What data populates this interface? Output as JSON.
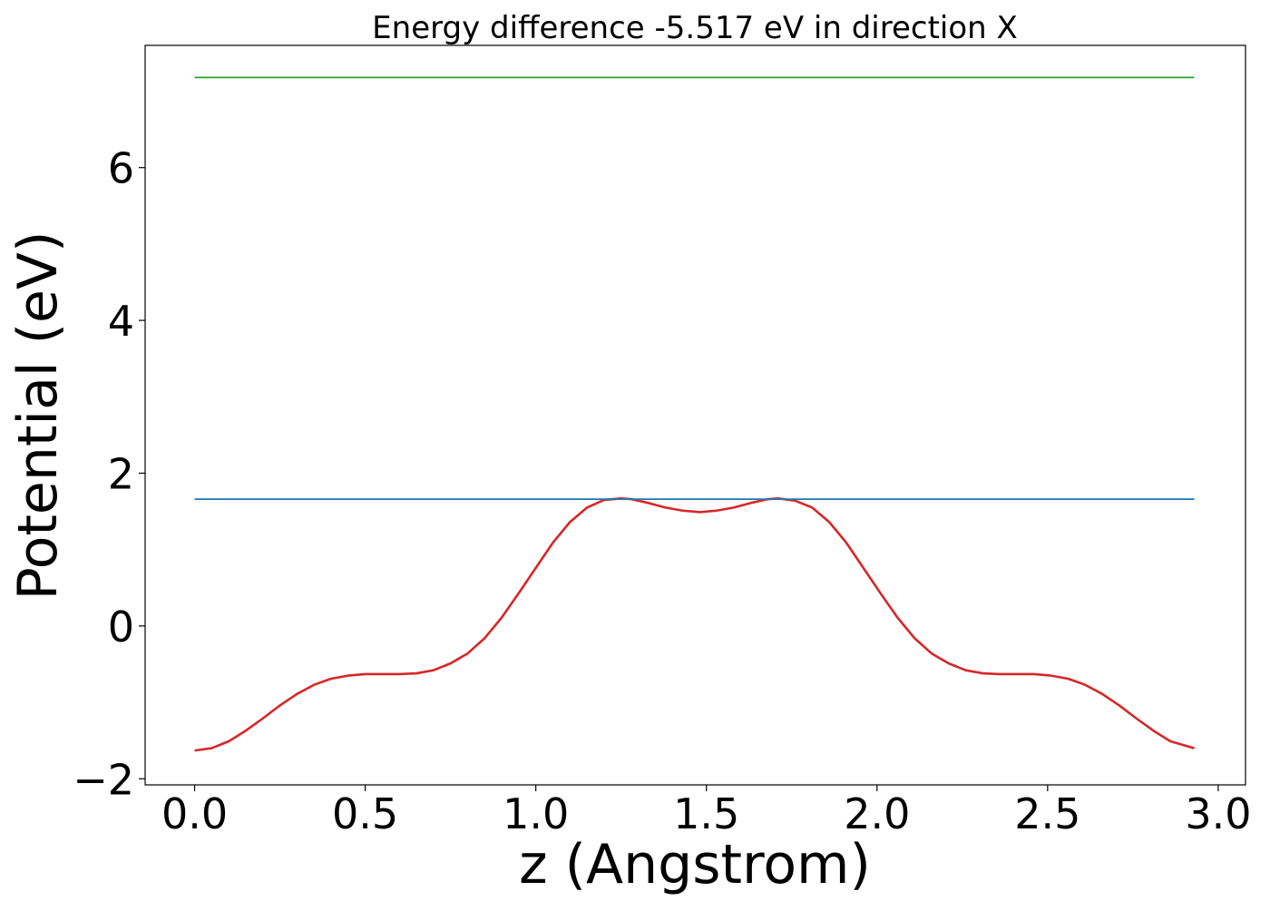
{
  "chart_data": {
    "type": "line",
    "title": "Energy difference -5.517 eV in direction X",
    "xlabel": "z (Angstrom)",
    "ylabel": "Potential (eV)",
    "xlim": [
      -0.145,
      3.08
    ],
    "ylim": [
      -2.08,
      7.6
    ],
    "xticks": [
      0.0,
      0.5,
      1.0,
      1.5,
      2.0,
      2.5,
      3.0
    ],
    "xtick_labels": [
      "0.0",
      "0.5",
      "1.0",
      "1.5",
      "2.0",
      "2.5",
      "3.0"
    ],
    "yticks": [
      -2,
      0,
      2,
      4,
      6
    ],
    "ytick_labels": [
      "−2",
      "0",
      "2",
      "4",
      "6"
    ],
    "grid": false,
    "series": [
      {
        "color": "#d62728",
        "x": [
          0.0,
          0.05,
          0.1,
          0.15,
          0.2,
          0.25,
          0.3,
          0.35,
          0.4,
          0.45,
          0.5,
          0.55,
          0.6,
          0.65,
          0.7,
          0.75,
          0.8,
          0.85,
          0.9,
          0.95,
          1.0,
          1.05,
          1.1,
          1.15,
          1.2,
          1.25,
          1.28,
          1.33,
          1.38,
          1.43,
          1.48,
          1.53,
          1.58,
          1.63,
          1.68,
          1.71,
          1.76,
          1.81,
          1.86,
          1.91,
          1.96,
          2.01,
          2.06,
          2.11,
          2.16,
          2.21,
          2.26,
          2.31,
          2.36,
          2.41,
          2.46,
          2.51,
          2.56,
          2.61,
          2.66,
          2.71,
          2.76,
          2.81,
          2.86,
          2.93
        ],
        "y": [
          -1.63,
          -1.6,
          -1.51,
          -1.37,
          -1.21,
          -1.04,
          -0.89,
          -0.77,
          -0.69,
          -0.65,
          -0.63,
          -0.63,
          -0.63,
          -0.62,
          -0.58,
          -0.49,
          -0.36,
          -0.16,
          0.11,
          0.43,
          0.76,
          1.09,
          1.36,
          1.55,
          1.65,
          1.67,
          1.66,
          1.61,
          1.55,
          1.51,
          1.49,
          1.51,
          1.55,
          1.61,
          1.66,
          1.67,
          1.64,
          1.55,
          1.36,
          1.09,
          0.76,
          0.43,
          0.11,
          -0.16,
          -0.36,
          -0.49,
          -0.58,
          -0.62,
          -0.63,
          -0.63,
          -0.63,
          -0.65,
          -0.69,
          -0.77,
          -0.89,
          -1.04,
          -1.21,
          -1.37,
          -1.51,
          -1.6
        ]
      },
      {
        "color": "#1f77b4",
        "x": [
          0.0,
          2.93
        ],
        "y": [
          1.66,
          1.66
        ]
      },
      {
        "color": "#2ca02c",
        "x": [
          0.0,
          2.93
        ],
        "y": [
          7.18,
          7.18
        ]
      }
    ]
  }
}
